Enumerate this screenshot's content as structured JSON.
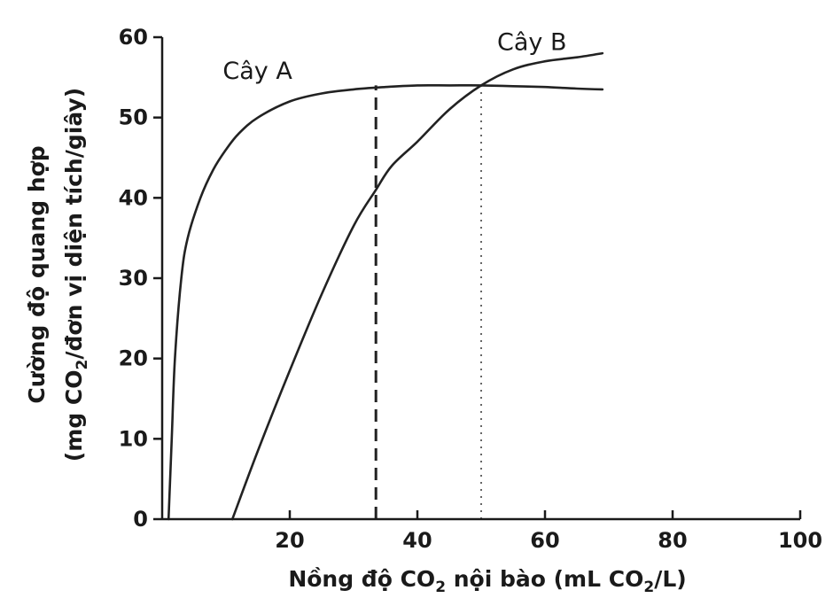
{
  "chart_data": {
    "type": "line",
    "title": "",
    "xlabel": {
      "prefix": "Nồng độ CO",
      "sub": "2",
      "middle": " nội bào (mL CO",
      "sub2": "2",
      "suffix": "/L)"
    },
    "ylabel": {
      "line1": "Cường độ quang hợp",
      "line2_prefix": "(mg CO",
      "line2_sub": "2",
      "line2_suffix": "/đơn vị diện tích/giây)"
    },
    "xlim": [
      0,
      100
    ],
    "ylim": [
      0,
      60
    ],
    "xticks": [
      20,
      40,
      60,
      80,
      100
    ],
    "yticks": [
      0,
      10,
      20,
      30,
      40,
      50,
      60
    ],
    "grid": false,
    "series": [
      {
        "name": "Cây A",
        "x": [
          1,
          1.5,
          2,
          3,
          4,
          6,
          8,
          10,
          12,
          15,
          20,
          25,
          30,
          35,
          40,
          45,
          50,
          55,
          60,
          65,
          69
        ],
        "y": [
          0,
          10,
          20,
          30,
          35,
          40,
          43.5,
          46,
          48,
          50,
          52,
          53,
          53.5,
          53.8,
          54,
          54,
          54,
          53.9,
          53.8,
          53.6,
          53.5
        ]
      },
      {
        "name": "Cây B",
        "x": [
          11,
          15,
          20,
          25,
          30,
          33.5,
          36,
          40,
          45,
          50,
          55,
          60,
          65,
          69
        ],
        "y": [
          0,
          8.5,
          18.5,
          28,
          36.5,
          41,
          44,
          47,
          51,
          54,
          56,
          57,
          57.5,
          58
        ]
      }
    ],
    "reference_lines": [
      {
        "x": 33.5,
        "y": 54,
        "style": "dashed"
      },
      {
        "x": 50,
        "y": 54,
        "style": "dotted"
      }
    ]
  }
}
